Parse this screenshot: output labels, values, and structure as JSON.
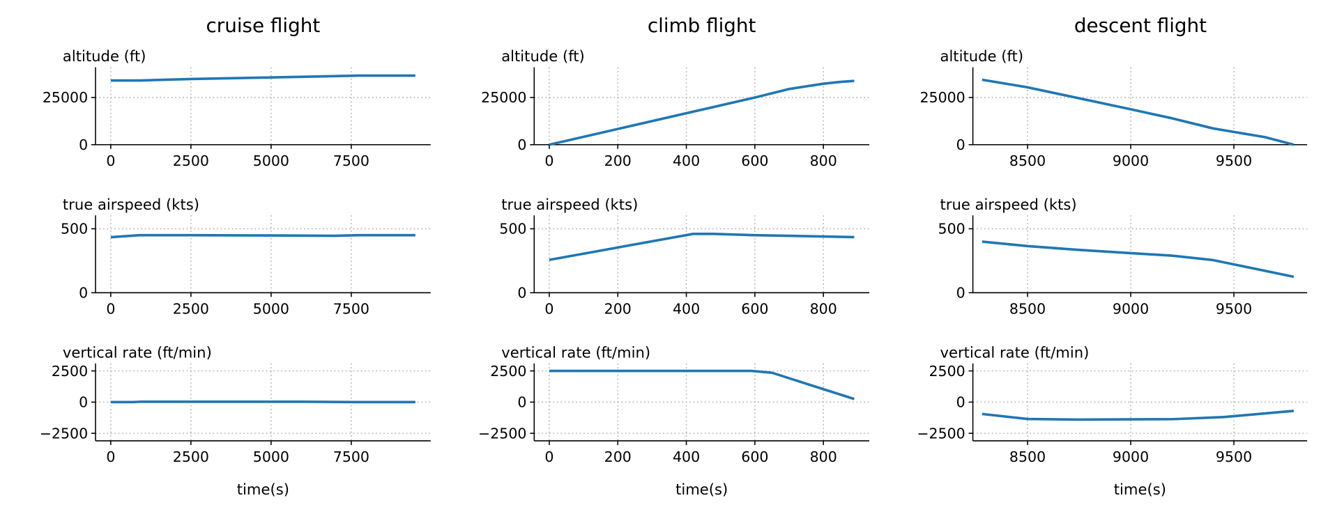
{
  "chart_data": [
    {
      "type": "line",
      "title": "cruise flight",
      "panel": "altitude",
      "ylabel": "altitude (ft)",
      "xlabel": "",
      "xlim": [
        -475,
        9975
      ],
      "ylim": [
        0,
        41000
      ],
      "xticks": [
        0,
        2500,
        5000,
        7500
      ],
      "yticks": [
        0,
        25000
      ],
      "grid": true,
      "x": [
        0,
        900,
        2500,
        5000,
        7700,
        9500
      ],
      "y": [
        34000,
        34000,
        34800,
        35600,
        36600,
        36600
      ]
    },
    {
      "type": "line",
      "title": "cruise flight",
      "panel": "true airspeed",
      "ylabel": "true airspeed (kts)",
      "xlabel": "",
      "xlim": [
        -475,
        9975
      ],
      "ylim": [
        0,
        605
      ],
      "xticks": [
        0,
        2500,
        5000,
        7500
      ],
      "yticks": [
        0,
        500
      ],
      "grid": true,
      "x": [
        0,
        900,
        2500,
        5000,
        7000,
        7700,
        9500
      ],
      "y": [
        434,
        450,
        450,
        448,
        445,
        450,
        450
      ]
    },
    {
      "type": "line",
      "title": "cruise flight",
      "panel": "vertical rate",
      "ylabel": "vertical rate (ft/min)",
      "xlabel": "time(s)",
      "xlim": [
        -475,
        9975
      ],
      "ylim": [
        -3100,
        3100
      ],
      "xticks": [
        0,
        2500,
        5000,
        7500
      ],
      "yticks": [
        -2500,
        0,
        2500
      ],
      "grid": true,
      "x": [
        0,
        700,
        900,
        6000,
        7700,
        9500
      ],
      "y": [
        0,
        0,
        30,
        30,
        0,
        0
      ]
    },
    {
      "type": "line",
      "title": "climb flight",
      "panel": "altitude",
      "ylabel": "altitude (ft)",
      "xlabel": "",
      "xlim": [
        -44,
        934
      ],
      "ylim": [
        0,
        41000
      ],
      "xticks": [
        0,
        200,
        400,
        600,
        800
      ],
      "yticks": [
        0,
        25000
      ],
      "grid": true,
      "x": [
        0,
        600,
        700,
        800,
        850,
        890
      ],
      "y": [
        0,
        25000,
        29500,
        32300,
        33300,
        33800
      ]
    },
    {
      "type": "line",
      "title": "climb flight",
      "panel": "true airspeed",
      "ylabel": "true airspeed (kts)",
      "xlabel": "",
      "xlim": [
        -44,
        934
      ],
      "ylim": [
        0,
        605
      ],
      "xticks": [
        0,
        200,
        400,
        600,
        800
      ],
      "yticks": [
        0,
        500
      ],
      "grid": true,
      "x": [
        0,
        420,
        480,
        600,
        800,
        890
      ],
      "y": [
        257,
        460,
        460,
        450,
        440,
        435
      ]
    },
    {
      "type": "line",
      "title": "climb flight",
      "panel": "vertical rate",
      "ylabel": "vertical rate (ft/min)",
      "xlabel": "time(s)",
      "xlim": [
        -44,
        934
      ],
      "ylim": [
        -3100,
        3100
      ],
      "xticks": [
        0,
        200,
        400,
        600,
        800
      ],
      "yticks": [
        -2500,
        0,
        2500
      ],
      "grid": true,
      "x": [
        0,
        590,
        650,
        890
      ],
      "y": [
        2500,
        2500,
        2350,
        250
      ]
    },
    {
      "type": "line",
      "title": "descent flight",
      "panel": "altitude",
      "ylabel": "altitude (ft)",
      "xlabel": "",
      "xlim": [
        8235,
        9855
      ],
      "ylim": [
        0,
        41000
      ],
      "xticks": [
        8500,
        9000,
        9500
      ],
      "yticks": [
        0,
        25000
      ],
      "grid": true,
      "x": [
        8280,
        8500,
        9000,
        9200,
        9400,
        9650,
        9790
      ],
      "y": [
        34400,
        30400,
        18750,
        14000,
        8600,
        4000,
        0
      ]
    },
    {
      "type": "line",
      "title": "descent flight",
      "panel": "true airspeed",
      "ylabel": "true airspeed (kts)",
      "xlabel": "",
      "xlim": [
        8235,
        9855
      ],
      "ylim": [
        0,
        605
      ],
      "xticks": [
        8500,
        9000,
        9500
      ],
      "yticks": [
        0,
        500
      ],
      "grid": true,
      "x": [
        8280,
        8500,
        8750,
        9000,
        9200,
        9400,
        9790
      ],
      "y": [
        400,
        365,
        335,
        310,
        290,
        255,
        125
      ]
    },
    {
      "type": "line",
      "title": "descent flight",
      "panel": "vertical rate",
      "ylabel": "vertical rate (ft/min)",
      "xlabel": "time(s)",
      "xlim": [
        8235,
        9855
      ],
      "ylim": [
        -3100,
        3100
      ],
      "xticks": [
        8500,
        9000,
        9500
      ],
      "yticks": [
        -2500,
        0,
        2500
      ],
      "grid": true,
      "x": [
        8280,
        8500,
        8750,
        9000,
        9200,
        9450,
        9790
      ],
      "y": [
        -950,
        -1350,
        -1400,
        -1380,
        -1370,
        -1200,
        -700
      ]
    }
  ],
  "column_titles": [
    "cruise flight",
    "climb flight",
    "descent flight"
  ],
  "line_color": "#1f77b4"
}
